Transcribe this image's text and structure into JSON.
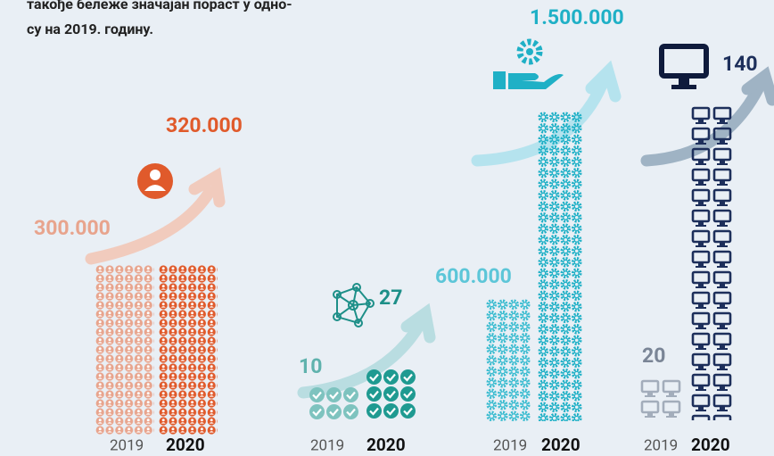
{
  "intro": [
    "такође бележе значајан пораст у одно-",
    "су на 2019. годину."
  ],
  "panels": [
    {
      "before": {
        "year": "2019",
        "value": "300.000"
      },
      "after": {
        "year": "2020",
        "value": "320.000"
      }
    },
    {
      "before": {
        "year": "2019",
        "value": "10"
      },
      "after": {
        "year": "2020",
        "value": "27"
      }
    },
    {
      "before": {
        "year": "2019",
        "value": "600.000"
      },
      "after": {
        "year": "2020",
        "value": "1.500.000"
      }
    },
    {
      "before": {
        "year": "2019",
        "value": "20"
      },
      "after": {
        "year": "2020",
        "value": "140"
      }
    }
  ]
}
